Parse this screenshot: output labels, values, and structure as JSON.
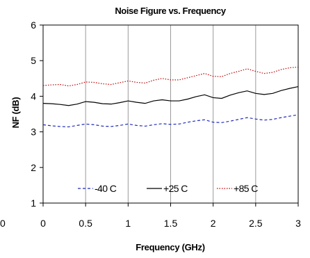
{
  "chart_data": {
    "type": "line",
    "title": "Noise Figure vs. Frequency",
    "xlabel": "Frequency (GHz)",
    "ylabel": "NF (dB)",
    "xlim": [
      0,
      3
    ],
    "ylim": [
      1,
      6
    ],
    "x_ticks": [
      "0",
      "0.5",
      "1",
      "1.5",
      "2",
      "2.5",
      "3"
    ],
    "y_ticks": [
      "1",
      "2",
      "3",
      "4",
      "5",
      "6"
    ],
    "grid": "vertical",
    "legend_position": "bottom-inside",
    "x": [
      0,
      0.1,
      0.2,
      0.3,
      0.4,
      0.5,
      0.6,
      0.7,
      0.8,
      0.9,
      1.0,
      1.1,
      1.2,
      1.3,
      1.4,
      1.5,
      1.6,
      1.7,
      1.8,
      1.9,
      2.0,
      2.1,
      2.2,
      2.3,
      2.4,
      2.5,
      2.6,
      2.7,
      2.8,
      2.9,
      3.0
    ],
    "series": [
      {
        "name": "-40 C",
        "color": "#1f2bb8",
        "dash": "dashed",
        "values": [
          3.2,
          3.17,
          3.15,
          3.14,
          3.18,
          3.22,
          3.2,
          3.16,
          3.15,
          3.18,
          3.22,
          3.18,
          3.16,
          3.2,
          3.23,
          3.21,
          3.22,
          3.27,
          3.31,
          3.34,
          3.27,
          3.26,
          3.3,
          3.35,
          3.4,
          3.36,
          3.33,
          3.35,
          3.4,
          3.44,
          3.48
        ]
      },
      {
        "name": "+25 C",
        "color": "#000000",
        "dash": "solid",
        "values": [
          3.8,
          3.79,
          3.77,
          3.74,
          3.78,
          3.85,
          3.83,
          3.79,
          3.78,
          3.82,
          3.87,
          3.83,
          3.8,
          3.87,
          3.9,
          3.87,
          3.87,
          3.92,
          3.99,
          4.04,
          3.96,
          3.94,
          4.03,
          4.1,
          4.15,
          4.08,
          4.05,
          4.08,
          4.16,
          4.22,
          4.27
        ]
      },
      {
        "name": "+85 C",
        "color": "#c00000",
        "dash": "dotted",
        "values": [
          4.3,
          4.32,
          4.33,
          4.29,
          4.33,
          4.4,
          4.39,
          4.35,
          4.33,
          4.38,
          4.43,
          4.39,
          4.37,
          4.45,
          4.5,
          4.46,
          4.46,
          4.52,
          4.58,
          4.64,
          4.56,
          4.55,
          4.64,
          4.7,
          4.77,
          4.7,
          4.64,
          4.67,
          4.75,
          4.8,
          4.82
        ]
      }
    ],
    "stray_label": "0"
  }
}
